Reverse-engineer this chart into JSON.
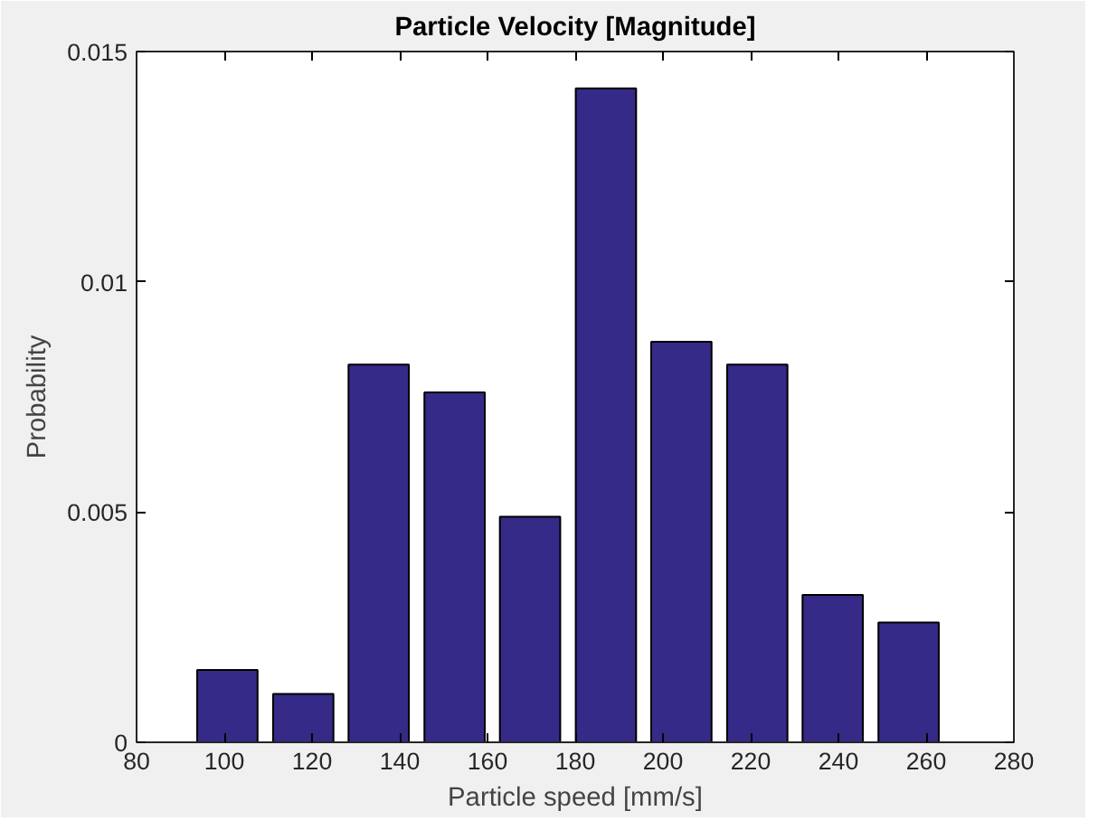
{
  "chart_data": {
    "type": "bar",
    "title": "Particle Velocity [Magnitude]",
    "xlabel": "Particle speed [mm/s]",
    "ylabel": "Probability",
    "x": [
      100.7,
      118,
      135.2,
      152.5,
      169.7,
      187,
      204.2,
      221.5,
      238.7,
      256
    ],
    "values": [
      0.00157,
      0.00105,
      0.0082,
      0.0076,
      0.0049,
      0.0142,
      0.0087,
      0.0082,
      0.0032,
      0.0026
    ],
    "color": "#352a87",
    "xlim": [
      80,
      280
    ],
    "xticks": [
      80,
      100,
      120,
      140,
      160,
      180,
      200,
      220,
      240,
      260,
      280
    ],
    "ylim": [
      0,
      0.015
    ],
    "yticks": [
      0,
      0.005,
      0.01,
      0.015
    ],
    "grid": false
  }
}
